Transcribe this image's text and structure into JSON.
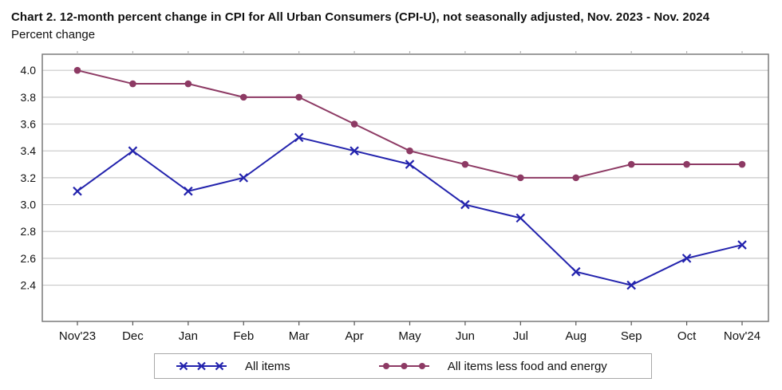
{
  "header": {
    "title": "Chart 2. 12-month percent change in CPI for All Urban Consumers (CPI-U), not seasonally adjusted, Nov. 2023 - Nov. 2024",
    "subtitle": "Percent change"
  },
  "chart_data": {
    "type": "line",
    "categories": [
      "Nov'23",
      "Dec",
      "Jan",
      "Feb",
      "Mar",
      "Apr",
      "May",
      "Jun",
      "Jul",
      "Aug",
      "Sep",
      "Oct",
      "Nov'24"
    ],
    "series": [
      {
        "name": "All items",
        "marker": "x",
        "color": "#2323ad",
        "values": [
          3.1,
          3.4,
          3.1,
          3.2,
          3.5,
          3.4,
          3.3,
          3.0,
          2.9,
          2.5,
          2.4,
          2.6,
          2.7
        ]
      },
      {
        "name": "All items less food and energy",
        "marker": "circle",
        "color": "#8d3a64",
        "values": [
          4.0,
          3.9,
          3.9,
          3.8,
          3.8,
          3.6,
          3.4,
          3.3,
          3.2,
          3.2,
          3.3,
          3.3,
          3.3
        ]
      }
    ],
    "title": "Chart 2. 12-month percent change in CPI for All Urban Consumers (CPI-U), not seasonally adjusted, Nov. 2023 - Nov. 2024",
    "xlabel": "",
    "ylabel": "Percent change",
    "yticks": [
      4.0,
      3.8,
      3.6,
      3.4,
      3.2,
      3.0,
      2.8,
      2.6,
      2.4
    ],
    "ylim": [
      2.13,
      4.12
    ],
    "grid": "horizontal",
    "legend_position": "bottom"
  },
  "style": {
    "grid_color": "#c9c9c9",
    "border_color": "#7a7a7a",
    "tick_color": "#555555",
    "top_tick_color": "#b5b5b5",
    "text_color": "#111111"
  }
}
